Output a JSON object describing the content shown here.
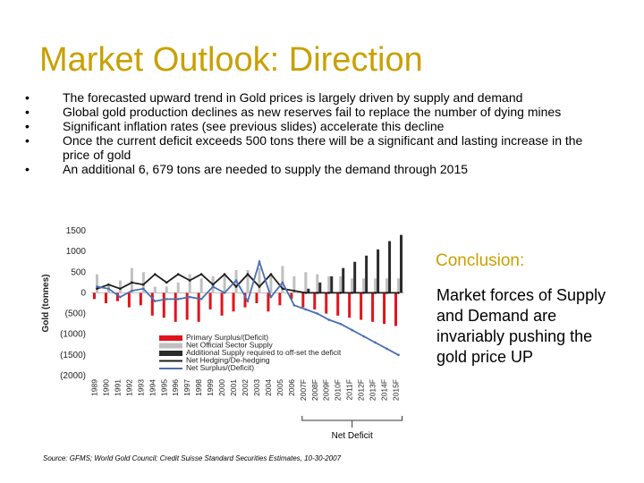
{
  "title": "Market Outlook: Direction",
  "bullets": [
    "The forecasted upward trend in Gold prices is largely driven by supply and demand",
    "Global gold production declines as new reserves fail to replace the number of dying mines",
    "Significant inflation rates (see previous slides) accelerate this decline",
    "Once the current deficit exceeds 500 tons there will be a significant and lasting increase in the price of gold",
    "An additional 6, 679 tons are needed to supply the demand through 2015"
  ],
  "conclusion": {
    "heading": "Conclusion:",
    "body": "Market forces of Supply and Demand are invariably pushing the gold price UP"
  },
  "source": "Source: GFMS; World Gold Council; Credit Suisse Standard Securities Estimates, 10-30-2007",
  "chart_data": {
    "type": "bar",
    "ylabel": "Gold (tonnes)",
    "ylim": [
      -2000,
      1500
    ],
    "y_ticks": [
      1500,
      1000,
      500,
      0,
      -500,
      -1000,
      -1500,
      -2000
    ],
    "y_tick_labels": [
      "1500",
      "1000",
      "500",
      "0",
      "(500)",
      "(1000)",
      "(1500)",
      "(2000)"
    ],
    "categories": [
      "1989",
      "1990",
      "1991",
      "1992",
      "1993",
      "1994",
      "1995",
      "1996",
      "1997",
      "1998",
      "1999",
      "2000",
      "2001",
      "2002",
      "2003",
      "2004",
      "2005",
      "2006",
      "2007F",
      "2008F",
      "2009F",
      "2010F",
      "2011F",
      "2012F",
      "2013F",
      "2014F",
      "2015F"
    ],
    "series": [
      {
        "name": "Primary Surplus/(Deficit)",
        "kind": "bar",
        "color": "#e1141c",
        "values": [
          -150,
          -250,
          -200,
          -350,
          -300,
          -550,
          -600,
          -700,
          -650,
          -700,
          -400,
          -550,
          -450,
          -350,
          -250,
          -450,
          -300,
          -150,
          -350,
          -400,
          -500,
          -550,
          -600,
          -650,
          -700,
          -750,
          -800
        ]
      },
      {
        "name": "Net Official Sector Supply",
        "kind": "bar",
        "color": "#c0c0c0",
        "values": [
          450,
          200,
          300,
          600,
          500,
          150,
          150,
          250,
          450,
          350,
          400,
          450,
          550,
          550,
          600,
          450,
          650,
          400,
          500,
          450,
          400,
          400,
          350,
          350,
          350,
          350,
          350
        ]
      },
      {
        "name": "Additional Supply required to off-set the deficit",
        "kind": "bar",
        "color": "#2b2b2b",
        "values": [
          0,
          0,
          0,
          0,
          0,
          0,
          0,
          0,
          0,
          0,
          0,
          0,
          0,
          0,
          0,
          0,
          0,
          0,
          100,
          250,
          400,
          600,
          750,
          900,
          1050,
          1250,
          1400
        ]
      },
      {
        "name": "Net Hedging/De-hedging",
        "kind": "line",
        "color": "#1e1e1e",
        "values": [
          100,
          200,
          100,
          250,
          200,
          450,
          250,
          450,
          300,
          450,
          200,
          450,
          150,
          450,
          150,
          450,
          100,
          50,
          0,
          0,
          0,
          0,
          0,
          0,
          0,
          0,
          0
        ]
      },
      {
        "name": "Net Surplus/(Deficit)",
        "kind": "line",
        "color": "#4a6fb3",
        "values": [
          150,
          100,
          -100,
          50,
          100,
          -200,
          -150,
          -150,
          -100,
          -150,
          150,
          0,
          300,
          -200,
          750,
          -100,
          250,
          -300,
          -400,
          -500,
          -650,
          -750,
          -900,
          -1050,
          -1200,
          -1350,
          -1500
        ]
      }
    ],
    "annotation": "Net Deficit",
    "legend_position": "bottom-left-inside"
  }
}
